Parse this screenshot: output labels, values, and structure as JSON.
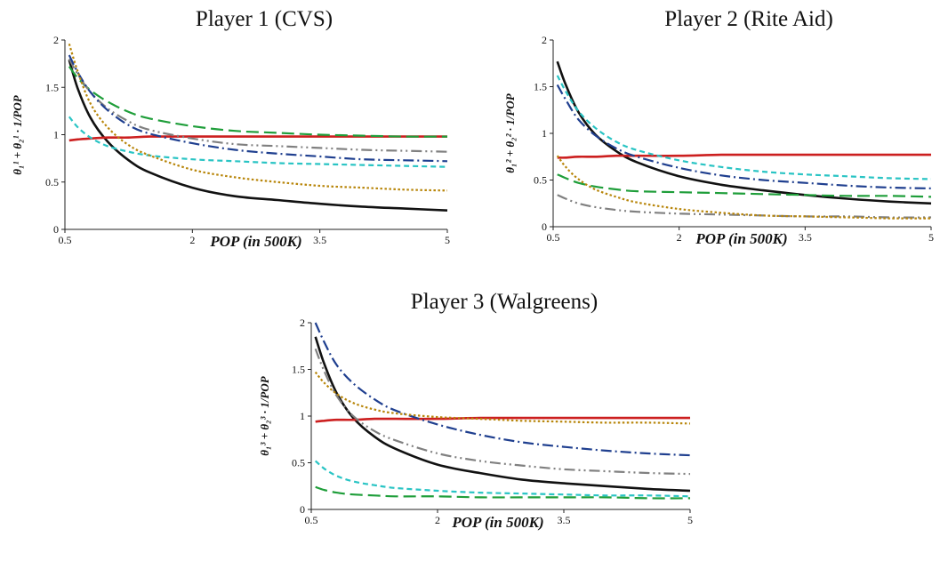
{
  "chart_data": [
    {
      "type": "line",
      "title": "Player 1 (CVS)",
      "xlabel": "POP (in 500K)",
      "ylabel": "θ₁¹ + θ₂¹ · 1/POP",
      "xlim": [
        0.5,
        5
      ],
      "ylim": [
        0,
        2
      ],
      "xticks": [
        "0.5",
        "2",
        "3.5",
        "5"
      ],
      "yticks": [
        "0",
        "0.5",
        "1",
        "1.5",
        "2"
      ],
      "x": [
        0.55,
        0.65,
        0.8,
        1.0,
        1.25,
        1.5,
        2.0,
        2.5,
        3.0,
        3.5,
        4.0,
        4.5,
        5.0
      ],
      "series": [
        {
          "color": "#111111",
          "dash": "solid",
          "values": [
            1.79,
            1.49,
            1.18,
            0.93,
            0.73,
            0.6,
            0.44,
            0.35,
            0.31,
            0.27,
            0.24,
            0.22,
            0.2
          ]
        },
        {
          "color": "#cc1f1f",
          "dash": "solid",
          "values": [
            0.94,
            0.95,
            0.96,
            0.97,
            0.97,
            0.98,
            0.98,
            0.98,
            0.98,
            0.98,
            0.98,
            0.98,
            0.98
          ]
        },
        {
          "color": "#1f9e3a",
          "dash": "longdash",
          "values": [
            1.72,
            1.6,
            1.47,
            1.35,
            1.24,
            1.17,
            1.09,
            1.04,
            1.02,
            1.0,
            0.99,
            0.98,
            0.98
          ]
        },
        {
          "color": "#808080",
          "dash": "dashdotdot",
          "values": [
            1.8,
            1.64,
            1.45,
            1.28,
            1.14,
            1.05,
            0.96,
            0.9,
            0.88,
            0.86,
            0.84,
            0.83,
            0.82
          ]
        },
        {
          "color": "#1f3f8f",
          "dash": "dashdot",
          "values": [
            1.84,
            1.66,
            1.45,
            1.26,
            1.1,
            1.01,
            0.91,
            0.84,
            0.8,
            0.77,
            0.74,
            0.73,
            0.72
          ]
        },
        {
          "color": "#29c4c4",
          "dash": "shortdash",
          "values": [
            1.19,
            1.08,
            0.97,
            0.88,
            0.82,
            0.78,
            0.74,
            0.72,
            0.7,
            0.69,
            0.68,
            0.67,
            0.66
          ]
        },
        {
          "color": "#b8860b",
          "dash": "dotted",
          "values": [
            1.96,
            1.67,
            1.33,
            1.08,
            0.89,
            0.78,
            0.63,
            0.55,
            0.5,
            0.46,
            0.44,
            0.42,
            0.41
          ]
        }
      ]
    },
    {
      "type": "line",
      "title": "Player 2 (Rite Aid)",
      "xlabel": "POP (in 500K)",
      "ylabel": "θ₁² + θ₂² · 1/POP",
      "xlim": [
        0.5,
        5
      ],
      "ylim": [
        0,
        2
      ],
      "xticks": [
        "0.5",
        "2",
        "3.5",
        "5"
      ],
      "yticks": [
        "0",
        "0.5",
        "1",
        "1.5",
        "2"
      ],
      "x": [
        0.55,
        0.65,
        0.8,
        1.0,
        1.25,
        1.5,
        2.0,
        2.5,
        3.0,
        3.5,
        4.0,
        4.5,
        5.0
      ],
      "series": [
        {
          "color": "#111111",
          "dash": "solid",
          "values": [
            1.77,
            1.52,
            1.23,
            0.99,
            0.81,
            0.69,
            0.54,
            0.45,
            0.39,
            0.34,
            0.3,
            0.27,
            0.25
          ]
        },
        {
          "color": "#cc1f1f",
          "dash": "solid",
          "values": [
            0.74,
            0.74,
            0.75,
            0.75,
            0.76,
            0.76,
            0.76,
            0.77,
            0.77,
            0.77,
            0.77,
            0.77,
            0.77
          ]
        },
        {
          "color": "#1f9e3a",
          "dash": "longdash",
          "values": [
            0.56,
            0.52,
            0.47,
            0.43,
            0.4,
            0.38,
            0.37,
            0.36,
            0.35,
            0.34,
            0.33,
            0.33,
            0.32
          ]
        },
        {
          "color": "#808080",
          "dash": "dashdotdot",
          "values": [
            0.34,
            0.3,
            0.25,
            0.21,
            0.18,
            0.16,
            0.14,
            0.13,
            0.12,
            0.11,
            0.11,
            0.1,
            0.1
          ]
        },
        {
          "color": "#1f3f8f",
          "dash": "dashdot",
          "values": [
            1.52,
            1.36,
            1.15,
            0.98,
            0.84,
            0.75,
            0.63,
            0.55,
            0.5,
            0.47,
            0.44,
            0.42,
            0.41
          ]
        },
        {
          "color": "#29c4c4",
          "dash": "shortdash",
          "values": [
            1.62,
            1.45,
            1.24,
            1.06,
            0.91,
            0.82,
            0.71,
            0.64,
            0.59,
            0.56,
            0.54,
            0.52,
            0.51
          ]
        },
        {
          "color": "#b8860b",
          "dash": "dotted",
          "values": [
            0.76,
            0.64,
            0.51,
            0.4,
            0.32,
            0.26,
            0.19,
            0.15,
            0.12,
            0.11,
            0.1,
            0.09,
            0.09
          ]
        }
      ]
    },
    {
      "type": "line",
      "title": "Player 3 (Walgreens)",
      "xlabel": "POP (in 500K)",
      "ylabel": "θ₁³ + θ₂³ · 1/POP",
      "xlim": [
        0.5,
        5
      ],
      "ylim": [
        0,
        2
      ],
      "xticks": [
        "0.5",
        "2",
        "3.5",
        "5"
      ],
      "yticks": [
        "0",
        "0.5",
        "1",
        "1.5",
        "2"
      ],
      "x": [
        0.55,
        0.65,
        0.8,
        1.0,
        1.25,
        1.5,
        2.0,
        2.5,
        3.0,
        3.5,
        4.0,
        4.5,
        5.0
      ],
      "series": [
        {
          "color": "#111111",
          "dash": "solid",
          "values": [
            1.85,
            1.57,
            1.25,
            0.98,
            0.78,
            0.65,
            0.48,
            0.39,
            0.32,
            0.28,
            0.25,
            0.22,
            0.2
          ]
        },
        {
          "color": "#cc1f1f",
          "dash": "solid",
          "values": [
            0.94,
            0.95,
            0.96,
            0.96,
            0.97,
            0.97,
            0.97,
            0.98,
            0.98,
            0.98,
            0.98,
            0.98,
            0.98
          ]
        },
        {
          "color": "#1f9e3a",
          "dash": "longdash",
          "values": [
            0.24,
            0.21,
            0.18,
            0.16,
            0.15,
            0.14,
            0.14,
            0.13,
            0.13,
            0.13,
            0.13,
            0.12,
            0.12
          ]
        },
        {
          "color": "#808080",
          "dash": "dashdotdot",
          "values": [
            1.72,
            1.49,
            1.22,
            1.0,
            0.84,
            0.74,
            0.6,
            0.52,
            0.47,
            0.43,
            0.41,
            0.39,
            0.38
          ]
        },
        {
          "color": "#1f3f8f",
          "dash": "dashdot",
          "values": [
            2.0,
            1.8,
            1.55,
            1.35,
            1.18,
            1.06,
            0.91,
            0.8,
            0.72,
            0.67,
            0.63,
            0.6,
            0.58
          ]
        },
        {
          "color": "#29c4c4",
          "dash": "shortdash",
          "values": [
            0.52,
            0.44,
            0.36,
            0.3,
            0.26,
            0.23,
            0.2,
            0.18,
            0.17,
            0.16,
            0.15,
            0.15,
            0.14
          ]
        },
        {
          "color": "#b8860b",
          "dash": "dotted",
          "values": [
            1.47,
            1.36,
            1.24,
            1.14,
            1.07,
            1.03,
            0.99,
            0.97,
            0.95,
            0.94,
            0.93,
            0.93,
            0.92
          ]
        }
      ]
    }
  ]
}
